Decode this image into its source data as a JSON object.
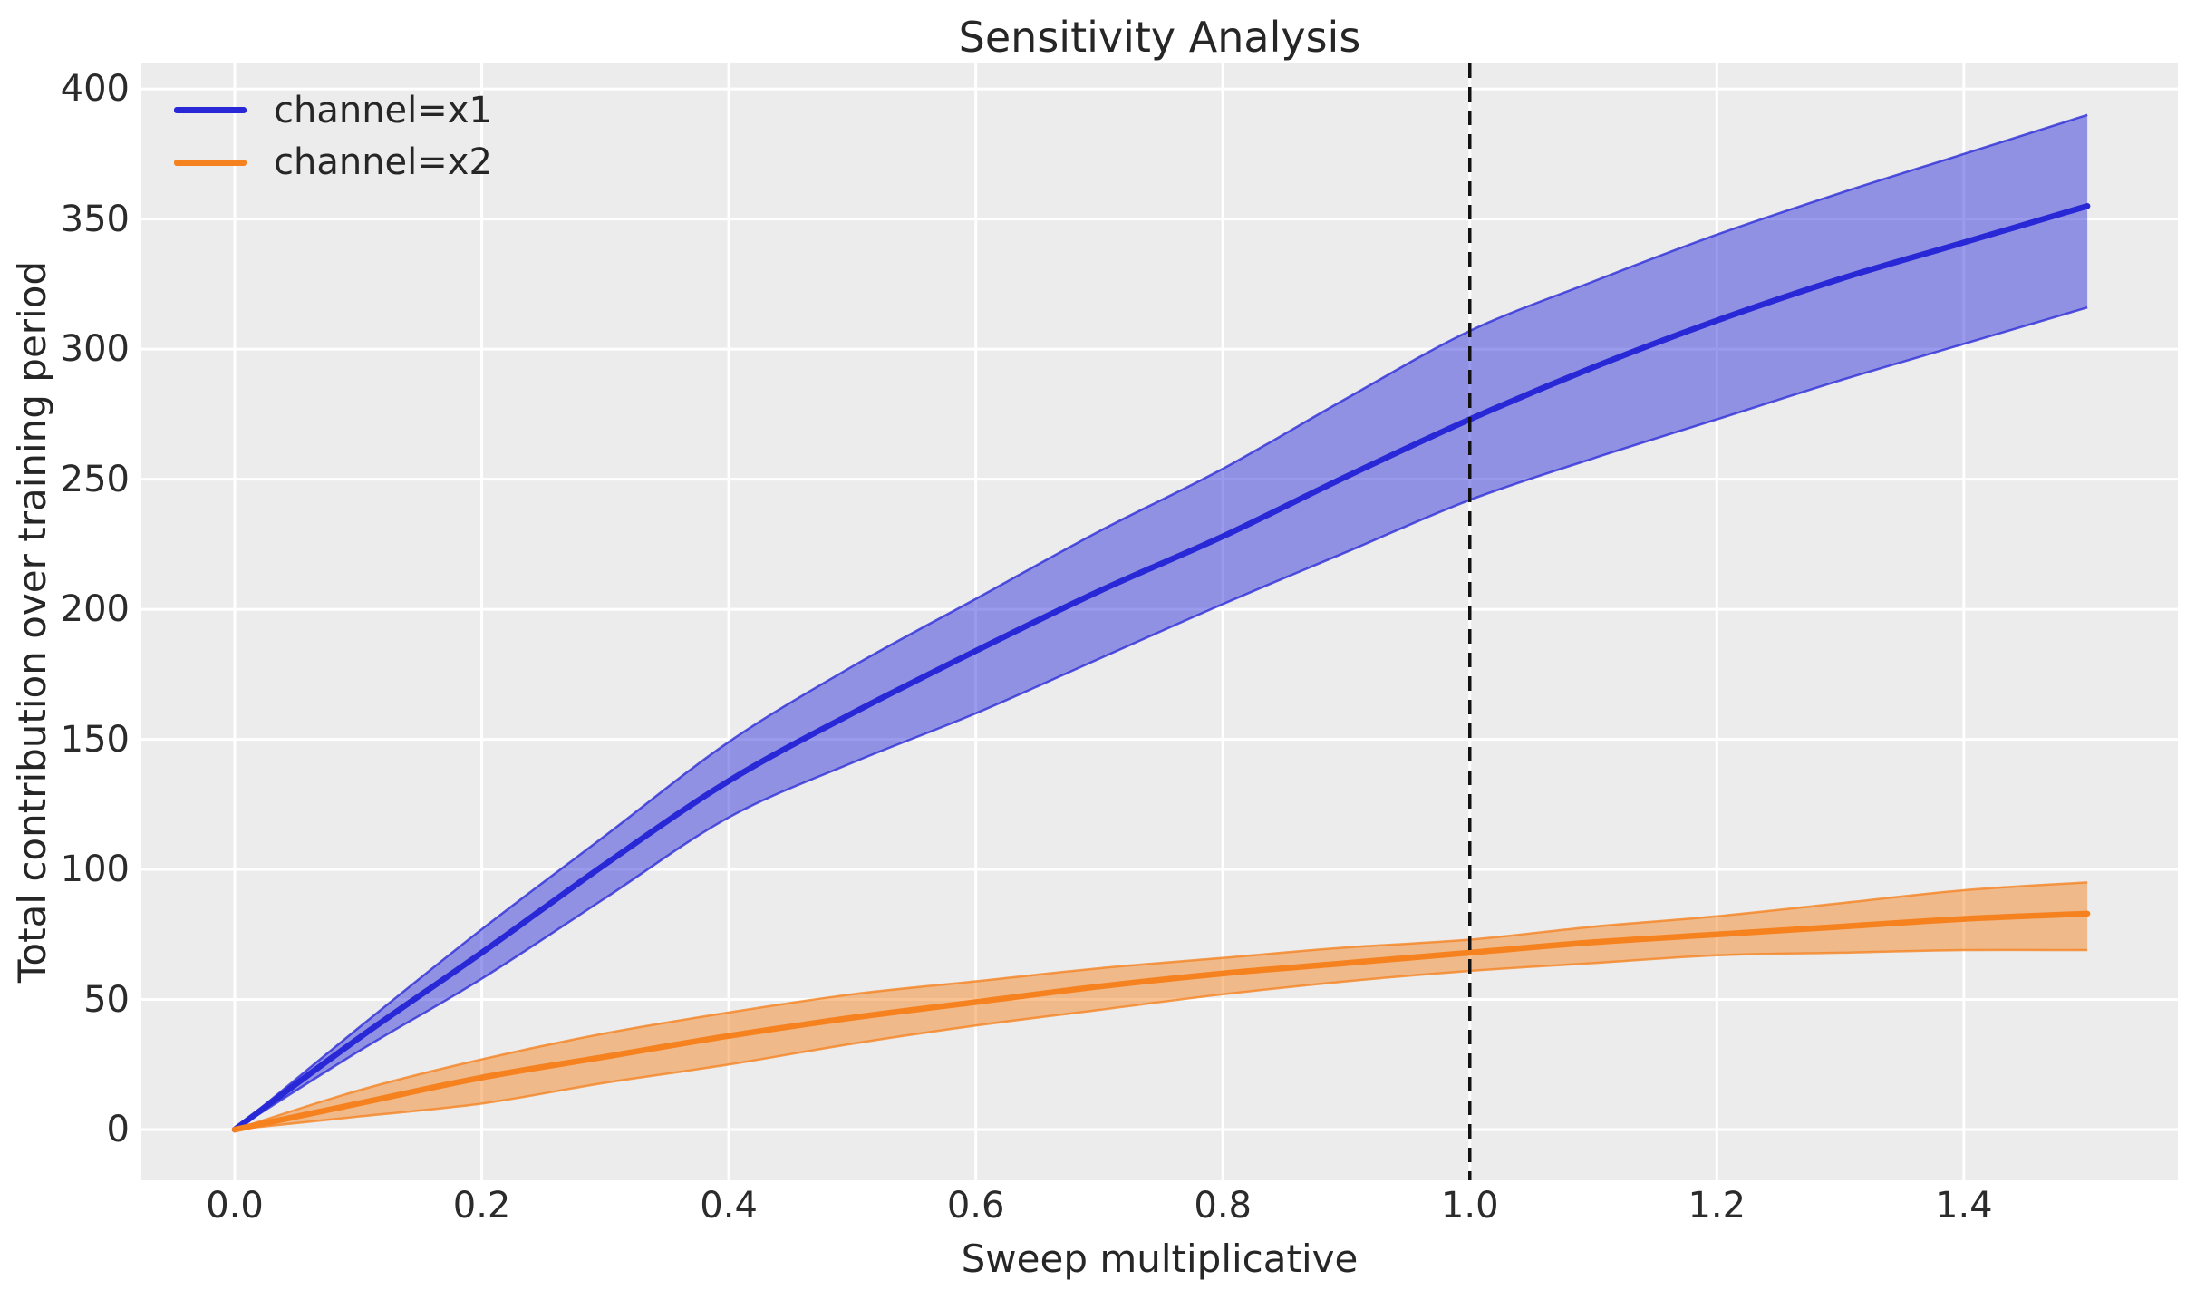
{
  "title": "Sensitivity Analysis",
  "xlabel": "Sweep multiplicative",
  "ylabel": "Total contribution over training period",
  "legend": {
    "position": "upper left",
    "items": [
      {
        "label": "channel=x1",
        "color": "#2828d6"
      },
      {
        "label": "channel=x2",
        "color": "#f5821f"
      }
    ]
  },
  "colors": {
    "figure_background": "#ffffff",
    "plot_background": "#ececec",
    "gridline": "#ffffff",
    "text": "#262626",
    "vline": "#111111",
    "series1_line": "#2828d6",
    "series1_band_fill": "rgba(42,42,216,0.47)",
    "series1_band_edge": "rgba(42,42,216,0.78)",
    "series2_line": "#f5821f",
    "series2_band_fill": "rgba(245,130,31,0.48)",
    "series2_band_edge": "rgba(245,130,31,0.78)"
  },
  "chart_data": {
    "type": "line",
    "title": "Sensitivity Analysis",
    "xlabel": "Sweep multiplicative",
    "ylabel": "Total contribution over training period",
    "grid": true,
    "legend_position": "upper left",
    "xlim": [
      -0.0756,
      1.5733
    ],
    "ylim": [
      -19.5,
      409.8
    ],
    "x_ticks": {
      "values": [
        0.0,
        0.2,
        0.4,
        0.6,
        0.8,
        1.0,
        1.2,
        1.4
      ],
      "labels": [
        "0.0",
        "0.2",
        "0.4",
        "0.6",
        "0.8",
        "1.0",
        "1.2",
        "1.4"
      ]
    },
    "y_ticks": {
      "values": [
        0,
        50,
        100,
        150,
        200,
        250,
        300,
        350,
        400
      ],
      "labels": [
        "0",
        "50",
        "100",
        "150",
        "200",
        "250",
        "300",
        "350",
        "400"
      ]
    },
    "vline": {
      "x": 1.0,
      "style": "dashed",
      "color": "#111111"
    },
    "x": [
      0.0,
      0.1,
      0.2,
      0.3,
      0.4,
      0.5,
      0.6,
      0.7,
      0.8,
      0.9,
      1.0,
      1.1,
      1.2,
      1.3,
      1.4,
      1.5
    ],
    "series": [
      {
        "name": "channel=x1",
        "color": "#2828d6",
        "band_fill": "rgba(42,42,216,0.47)",
        "band_edge": "rgba(42,42,216,0.78)",
        "values": [
          0,
          35,
          68,
          102,
          134,
          160,
          184,
          207,
          228,
          251,
          273,
          293,
          311,
          327,
          341,
          355
        ],
        "upper": [
          0,
          39,
          77,
          113,
          149,
          178,
          204,
          230,
          254,
          281,
          307,
          326,
          344,
          360,
          375,
          390
        ],
        "lower": [
          0,
          30,
          58,
          89,
          120,
          141,
          160,
          181,
          202,
          222,
          242,
          258,
          273,
          288,
          302,
          316
        ]
      },
      {
        "name": "channel=x2",
        "color": "#f5821f",
        "band_fill": "rgba(245,130,31,0.48)",
        "band_edge": "rgba(245,130,31,0.78)",
        "values": [
          0,
          10,
          20,
          28,
          36,
          43,
          49,
          55,
          60,
          64,
          68,
          72,
          75,
          78,
          81,
          83
        ],
        "upper": [
          0,
          15,
          27,
          37,
          45,
          52,
          57,
          62,
          66,
          70,
          73,
          78,
          82,
          87,
          92,
          95
        ],
        "lower": [
          0,
          5,
          10,
          18,
          25,
          33,
          40,
          46,
          52,
          57,
          61,
          64,
          67,
          68,
          69,
          69
        ]
      }
    ]
  }
}
